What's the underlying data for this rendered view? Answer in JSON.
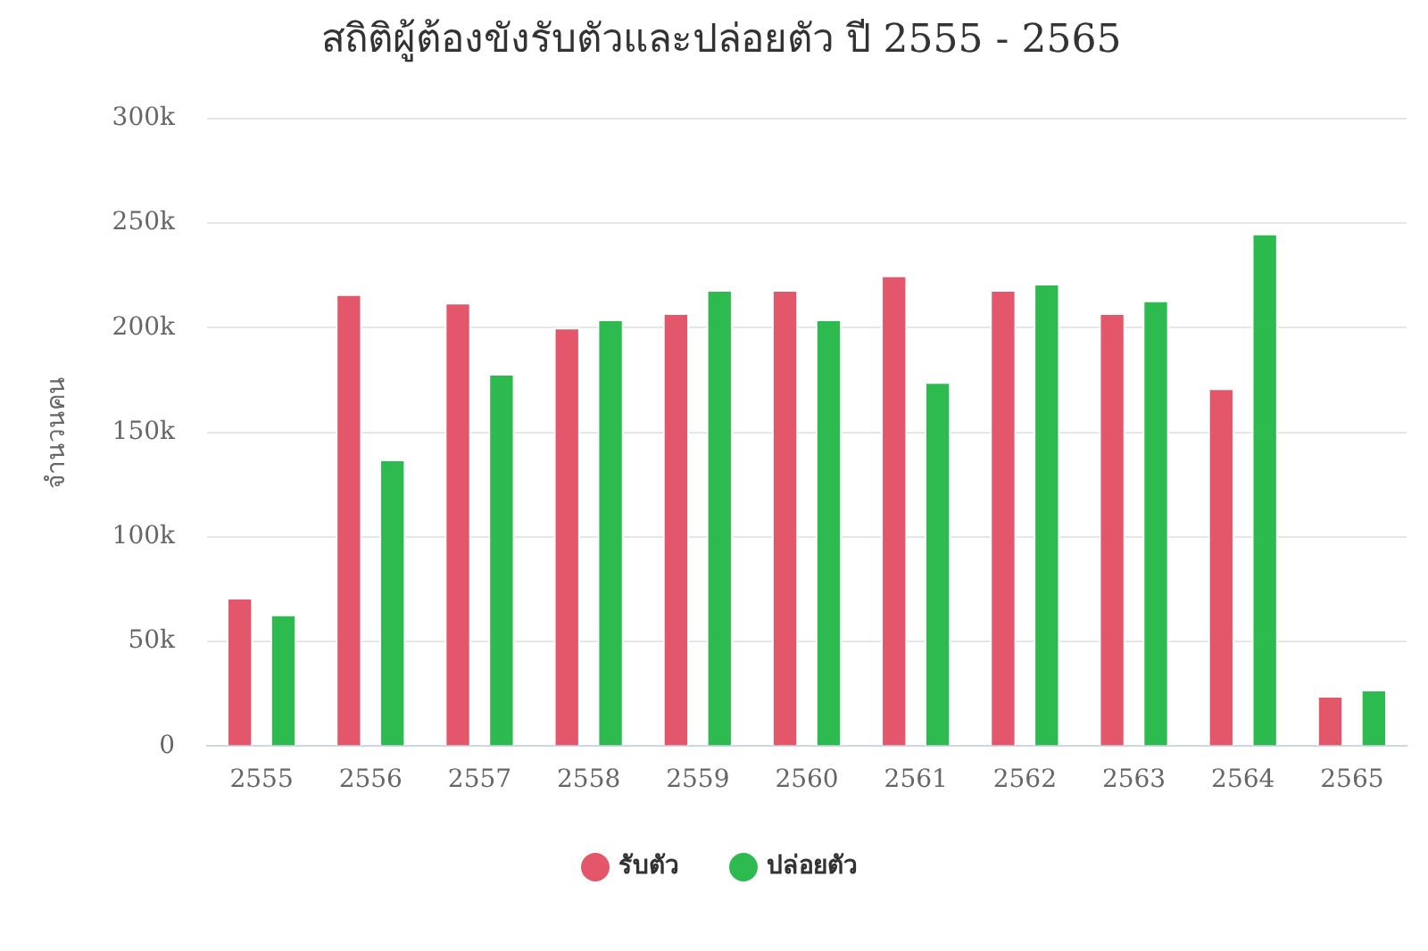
{
  "chart_data": {
    "type": "bar",
    "title": "สถิติผู้ต้องขังรับตัวและปล่อยตัว ปี 2555 - 2565",
    "ylabel": "จำนวนคน",
    "categories": [
      "2555",
      "2556",
      "2557",
      "2558",
      "2559",
      "2560",
      "2561",
      "2562",
      "2563",
      "2564",
      "2565"
    ],
    "series": [
      {
        "name": "รับตัว",
        "color": "#e4566a",
        "values": [
          71000,
          216000,
          212000,
          200000,
          207000,
          218000,
          225000,
          218000,
          207000,
          171000,
          24000
        ]
      },
      {
        "name": "ปล่อยตัว",
        "color": "#2dba4e",
        "values": [
          63000,
          137000,
          178000,
          204000,
          218000,
          204000,
          174000,
          221000,
          213000,
          245000,
          27000
        ]
      }
    ],
    "ylim": [
      0,
      300000
    ],
    "yticks": [
      {
        "value": 0,
        "label": "0"
      },
      {
        "value": 50000,
        "label": "50k"
      },
      {
        "value": 100000,
        "label": "100k"
      },
      {
        "value": 150000,
        "label": "150k"
      },
      {
        "value": 200000,
        "label": "200k"
      },
      {
        "value": 250000,
        "label": "250k"
      },
      {
        "value": 300000,
        "label": "300k"
      }
    ],
    "grid": "y",
    "legend": "bottom"
  }
}
